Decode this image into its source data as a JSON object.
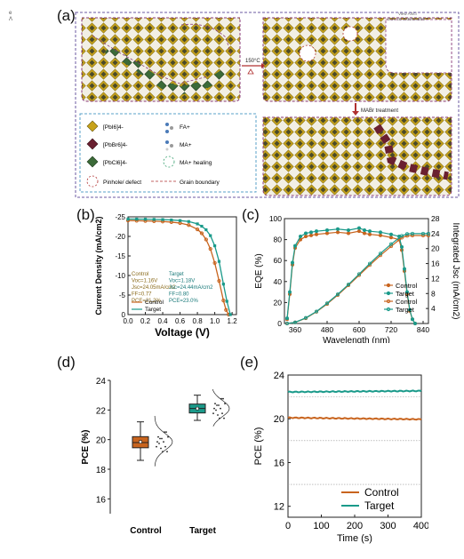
{
  "panels": {
    "a": "(a)",
    "b": "(b)",
    "c": "(c)",
    "d": "(d)",
    "e": "(e)"
  },
  "panel_a": {
    "process_label": "150°C",
    "treatment_label": "MABr treatment",
    "corner_text_1": "View Articl",
    "corner_text_2": "DOI: 10.1039/D2EE0",
    "legend": [
      {
        "label": "[PbI6]4-",
        "icon": "octahedron-gold"
      },
      {
        "label": "FA+",
        "icon": "fa-molecule"
      },
      {
        "label": "[PbBr6]4-",
        "icon": "octahedron-maroon"
      },
      {
        "label": "MA+",
        "icon": "ma-molecule"
      },
      {
        "label": "[PbCl6]4-",
        "icon": "octahedron-green"
      },
      {
        "label": "MA+ healing",
        "icon": "green-dashed-circle"
      },
      {
        "label": "Pinhole/ defect",
        "icon": "red-dashed-circle"
      },
      {
        "label": "Grain boundary",
        "icon": "red-dashed-line"
      }
    ],
    "colors": {
      "frame": "#8a3a7a",
      "gold": "#c7a21a",
      "grid": "#7a9a6a",
      "legend_border": "#5aa0c8"
    }
  },
  "chart_data": [
    {
      "id": "b",
      "type": "line",
      "xlabel": "Voltage (V)",
      "ylabel": "Current Density (mA/cm2)",
      "xlim": [
        0.0,
        1.25
      ],
      "ylim": [
        0,
        -25
      ],
      "xticks": [
        "0.0",
        "0.2",
        "0.4",
        "0.6",
        "0.8",
        "1.0",
        "1.2"
      ],
      "yticks": [
        "0",
        "-5",
        "-10",
        "-15",
        "-20",
        "-25"
      ],
      "legend": [
        "Control",
        "Target"
      ],
      "annotations": {
        "control": [
          "Control",
          "Voc=1.16V",
          "Jsc=24.05mA/cm2",
          "FF=0.77",
          "PCE=21.2%"
        ],
        "target": [
          "Target",
          "Voc=1.18V",
          "Jsc=24.44mA/cm2",
          "FF=0.80",
          "PCE=23.0%"
        ]
      },
      "series": [
        {
          "name": "Control",
          "color": "#c8641e",
          "x": [
            0,
            0.1,
            0.2,
            0.3,
            0.4,
            0.5,
            0.6,
            0.7,
            0.8,
            0.85,
            0.9,
            0.95,
            1.0,
            1.05,
            1.1,
            1.13,
            1.16
          ],
          "values": [
            -24.05,
            -24.0,
            -23.95,
            -23.9,
            -23.8,
            -23.65,
            -23.4,
            -22.9,
            -21.8,
            -20.8,
            -19.2,
            -16.8,
            -13.2,
            -8.6,
            -3.6,
            -1.2,
            0
          ]
        },
        {
          "name": "Target",
          "color": "#1a9a8a",
          "x": [
            0,
            0.1,
            0.2,
            0.3,
            0.4,
            0.5,
            0.6,
            0.7,
            0.8,
            0.85,
            0.9,
            0.95,
            1.0,
            1.05,
            1.1,
            1.14,
            1.18
          ],
          "values": [
            -24.44,
            -24.42,
            -24.4,
            -24.35,
            -24.3,
            -24.2,
            -24.05,
            -23.8,
            -23.2,
            -22.6,
            -21.7,
            -20.2,
            -17.6,
            -13.6,
            -7.8,
            -3.4,
            0
          ]
        }
      ]
    },
    {
      "id": "c",
      "type": "line",
      "xlabel": "Wavelength (nm)",
      "ylabel": "EQE (%)",
      "y2label": "Integrated Jsc (mA/cm2)",
      "xlim": [
        320,
        860
      ],
      "ylim": [
        0,
        100
      ],
      "y2lim": [
        0,
        28
      ],
      "xticks": [
        "360",
        "480",
        "600",
        "720",
        "840"
      ],
      "yticks": [
        "0",
        "20",
        "40",
        "60",
        "80",
        "100"
      ],
      "y2ticks": [
        "4",
        "8",
        "12",
        "16",
        "20",
        "24",
        "28"
      ],
      "legend": [
        "Control",
        "Target",
        "Control",
        "Target"
      ],
      "series": [
        {
          "name": "Control",
          "color": "#c8641e",
          "axis": "left",
          "x": [
            330,
            340,
            350,
            360,
            380,
            400,
            420,
            440,
            480,
            520,
            560,
            600,
            620,
            640,
            680,
            720,
            750,
            760,
            770,
            780,
            790,
            800,
            810
          ],
          "values": [
            4,
            28,
            56,
            72,
            80,
            83,
            84,
            85,
            86,
            87,
            86,
            88,
            86,
            85,
            84,
            82,
            80,
            70,
            50,
            28,
            12,
            4,
            0
          ]
        },
        {
          "name": "Target",
          "color": "#1a9a8a",
          "axis": "left",
          "x": [
            330,
            340,
            350,
            360,
            380,
            400,
            420,
            440,
            480,
            520,
            560,
            600,
            620,
            640,
            680,
            720,
            750,
            760,
            770,
            780,
            790,
            800,
            810
          ],
          "values": [
            5,
            30,
            58,
            74,
            83,
            86,
            87,
            88,
            89,
            90,
            89,
            91,
            89,
            88,
            87,
            85,
            83,
            73,
            52,
            30,
            13,
            4,
            0
          ]
        },
        {
          "name": "Control",
          "color": "#c8641e",
          "axis": "right",
          "x": [
            330,
            360,
            400,
            440,
            480,
            520,
            560,
            600,
            640,
            680,
            720,
            760,
            780,
            800,
            840,
            860
          ],
          "values": [
            0,
            0.3,
            1.4,
            3.1,
            5.2,
            7.6,
            10.2,
            12.9,
            15.6,
            18.2,
            20.6,
            22.9,
            23.4,
            23.5,
            23.5,
            23.5
          ]
        },
        {
          "name": "Target",
          "color": "#1a9a8a",
          "axis": "right",
          "x": [
            330,
            360,
            400,
            440,
            480,
            520,
            560,
            600,
            640,
            680,
            720,
            760,
            780,
            800,
            840,
            860
          ],
          "values": [
            0,
            0.3,
            1.5,
            3.2,
            5.4,
            7.8,
            10.4,
            13.2,
            16.0,
            18.7,
            21.2,
            23.4,
            23.9,
            24.0,
            24.0,
            24.0
          ]
        }
      ]
    },
    {
      "id": "d",
      "type": "box",
      "ylabel": "PCE (%)",
      "ylim": [
        15,
        24
      ],
      "yticks": [
        "16",
        "18",
        "20",
        "22",
        "24"
      ],
      "categories": [
        "Control",
        "Target"
      ],
      "boxes": [
        {
          "name": "Control",
          "color": "#c8641e",
          "min": 18.6,
          "q1": 19.45,
          "median": 19.8,
          "q3": 20.2,
          "max": 21.2,
          "mean": 19.85
        },
        {
          "name": "Target",
          "color": "#1a9a8a",
          "min": 21.3,
          "q1": 21.8,
          "median": 22.1,
          "q3": 22.4,
          "max": 23.0,
          "mean": 22.1
        }
      ]
    },
    {
      "id": "e",
      "type": "line",
      "xlabel": "Time (s)",
      "ylabel": "PCE (%)",
      "xlim": [
        0,
        400
      ],
      "ylim": [
        11,
        24
      ],
      "xticks": [
        "0",
        "100",
        "200",
        "300",
        "400"
      ],
      "yticks": [
        "12",
        "16",
        "20",
        "24"
      ],
      "legend": [
        "Control",
        "Target"
      ],
      "series": [
        {
          "name": "Control",
          "color": "#c8641e",
          "x": [
            0,
            400
          ],
          "values": [
            20.1,
            19.95
          ]
        },
        {
          "name": "Target",
          "color": "#1a9a8a",
          "x": [
            0,
            400
          ],
          "values": [
            22.45,
            22.55
          ]
        }
      ]
    }
  ]
}
